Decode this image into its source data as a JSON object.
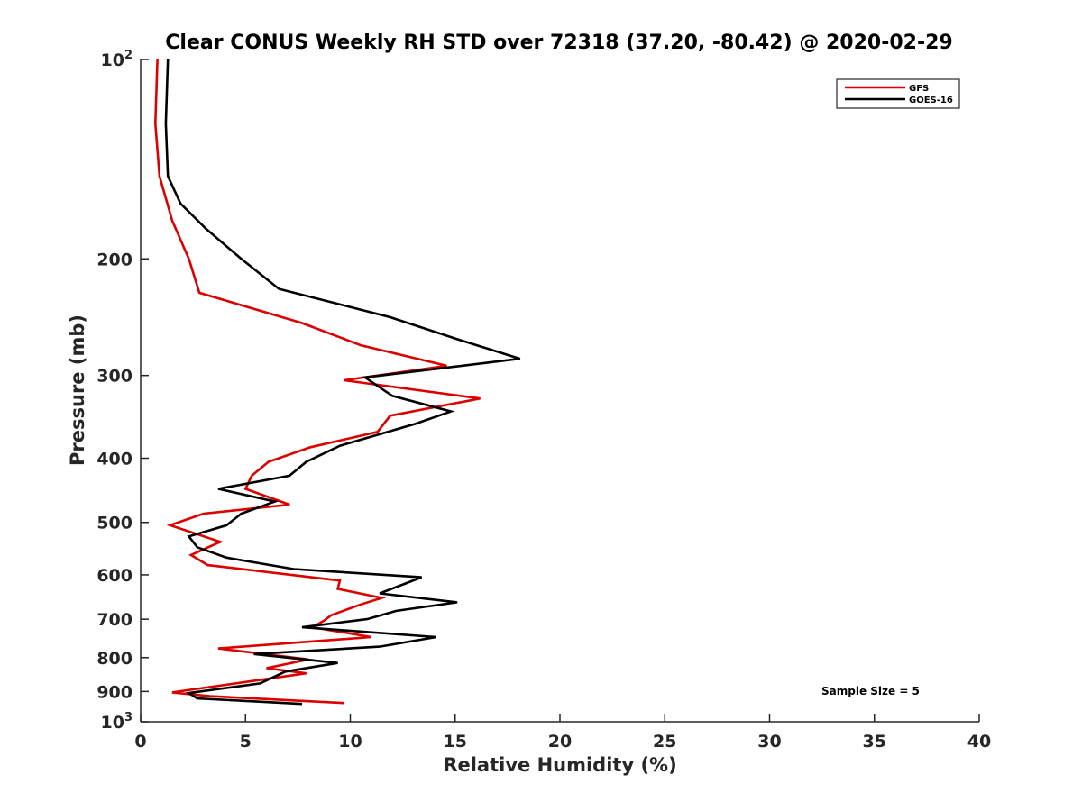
{
  "chart_data": {
    "type": "line",
    "title": "Clear CONUS Weekly RH STD over 72318 (37.20, -80.42) @ 2020-02-29",
    "xlabel": "Relative Humidity (%)",
    "ylabel": "Pressure (mb)",
    "xlim": [
      0,
      40
    ],
    "ylim": [
      100,
      1000
    ],
    "yscale": "log",
    "y_reversed": true,
    "x_ticks": [
      "0",
      "5",
      "10",
      "15",
      "20",
      "25",
      "30",
      "35",
      "40"
    ],
    "y_ticks": [
      {
        "value": 100,
        "base": "10",
        "exp": "2"
      },
      {
        "value": 200,
        "label": "200"
      },
      {
        "value": 300,
        "label": "300"
      },
      {
        "value": 400,
        "label": "400"
      },
      {
        "value": 500,
        "label": "500"
      },
      {
        "value": 600,
        "label": "600"
      },
      {
        "value": 700,
        "label": "700"
      },
      {
        "value": 800,
        "label": "800"
      },
      {
        "value": 900,
        "label": "900"
      },
      {
        "value": 1000,
        "base": "10",
        "exp": "3"
      }
    ],
    "legend_position": "top-right",
    "grid": false,
    "annotation": "Sample Size = 5",
    "series": [
      {
        "name": "GFS",
        "color": "#dd0000",
        "points": [
          [
            0.8,
            100
          ],
          [
            0.7,
            125
          ],
          [
            0.9,
            150
          ],
          [
            1.5,
            175
          ],
          [
            2.3,
            200
          ],
          [
            2.8,
            225
          ],
          [
            7.7,
            250
          ],
          [
            10.5,
            270
          ],
          [
            14.6,
            290
          ],
          [
            9.7,
            305
          ],
          [
            16.2,
            325
          ],
          [
            11.9,
            345
          ],
          [
            11.3,
            365
          ],
          [
            8.1,
            385
          ],
          [
            6.1,
            405
          ],
          [
            5.3,
            425
          ],
          [
            5.0,
            445
          ],
          [
            7.1,
            470
          ],
          [
            3.0,
            485
          ],
          [
            1.4,
            505
          ],
          [
            3.8,
            535
          ],
          [
            2.4,
            560
          ],
          [
            3.2,
            580
          ],
          [
            9.5,
            612
          ],
          [
            9.4,
            630
          ],
          [
            11.5,
            650
          ],
          [
            10.5,
            665
          ],
          [
            9.1,
            690
          ],
          [
            8.7,
            705
          ],
          [
            8.2,
            720
          ],
          [
            11.0,
            745
          ],
          [
            3.7,
            775
          ],
          [
            8.0,
            805
          ],
          [
            6.0,
            830
          ],
          [
            7.9,
            845
          ],
          [
            1.5,
            903
          ],
          [
            3.3,
            915
          ],
          [
            9.7,
            937
          ]
        ]
      },
      {
        "name": "GOES-16",
        "color": "#000000",
        "points": [
          [
            1.3,
            100
          ],
          [
            1.2,
            125
          ],
          [
            1.3,
            150
          ],
          [
            1.9,
            165
          ],
          [
            3.1,
            180
          ],
          [
            4.8,
            200
          ],
          [
            6.6,
            222
          ],
          [
            11.9,
            245
          ],
          [
            15.2,
            265
          ],
          [
            18.1,
            283
          ],
          [
            10.7,
            302
          ],
          [
            12.0,
            322
          ],
          [
            14.8,
            340
          ],
          [
            13.1,
            355
          ],
          [
            9.5,
            383
          ],
          [
            7.9,
            405
          ],
          [
            7.1,
            425
          ],
          [
            3.7,
            445
          ],
          [
            6.4,
            465
          ],
          [
            4.8,
            485
          ],
          [
            4.1,
            505
          ],
          [
            2.3,
            525
          ],
          [
            2.7,
            545
          ],
          [
            4.1,
            565
          ],
          [
            7.3,
            588
          ],
          [
            13.4,
            605
          ],
          [
            11.4,
            640
          ],
          [
            15.1,
            660
          ],
          [
            12.2,
            680
          ],
          [
            10.8,
            700
          ],
          [
            7.7,
            720
          ],
          [
            14.1,
            745
          ],
          [
            11.4,
            770
          ],
          [
            5.4,
            790
          ],
          [
            9.4,
            815
          ],
          [
            6.9,
            840
          ],
          [
            5.7,
            875
          ],
          [
            2.3,
            905
          ],
          [
            2.7,
            922
          ],
          [
            7.7,
            940
          ]
        ]
      }
    ]
  }
}
